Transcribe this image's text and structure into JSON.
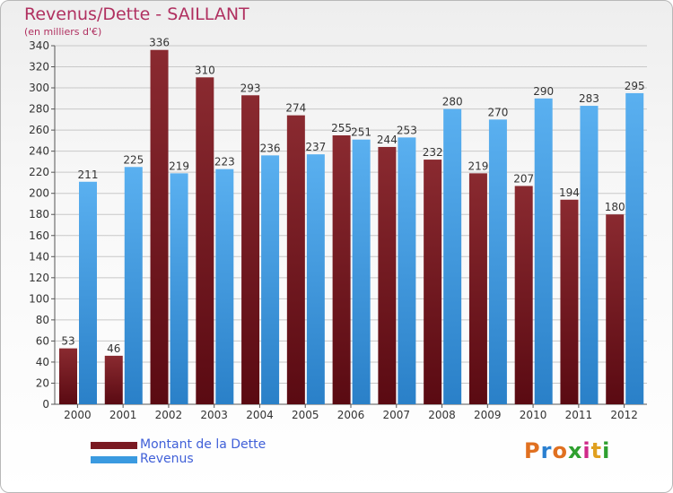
{
  "title": "Revenus/Dette - SAILLANT",
  "subtitle": "(en milliers d'€)",
  "brand": {
    "text": "Proxiti",
    "colors": [
      "#e07020",
      "#2a7fd0",
      "#e07020",
      "#2fa02f",
      "#d02a8a",
      "#e0a020",
      "#2fa02f"
    ]
  },
  "colors": {
    "dette": "#7a1a22",
    "revenus": "#3a9ae0",
    "grid": "#c8c8c8",
    "axis_text": "#333333"
  },
  "chart_data": {
    "type": "bar",
    "title": "Revenus/Dette - SAILLANT",
    "subtitle": "(en milliers d'€)",
    "categories": [
      "2000",
      "2001",
      "2002",
      "2003",
      "2004",
      "2005",
      "2006",
      "2007",
      "2008",
      "2009",
      "2010",
      "2011",
      "2012"
    ],
    "series": [
      {
        "name": "Montant de la Dette",
        "values": [
          53,
          46,
          336,
          310,
          293,
          274,
          255,
          244,
          232,
          219,
          207,
          194,
          180
        ],
        "color": "#7a1a22"
      },
      {
        "name": "Revenus",
        "values": [
          211,
          225,
          219,
          223,
          236,
          237,
          251,
          253,
          280,
          270,
          290,
          283,
          295
        ],
        "color": "#3a9ae0"
      }
    ],
    "ylim": [
      0,
      340
    ],
    "yticks": [
      0,
      20,
      40,
      60,
      80,
      100,
      120,
      140,
      160,
      180,
      200,
      220,
      240,
      260,
      280,
      300,
      320,
      340
    ],
    "grid": true,
    "legend": "bottom-left"
  }
}
